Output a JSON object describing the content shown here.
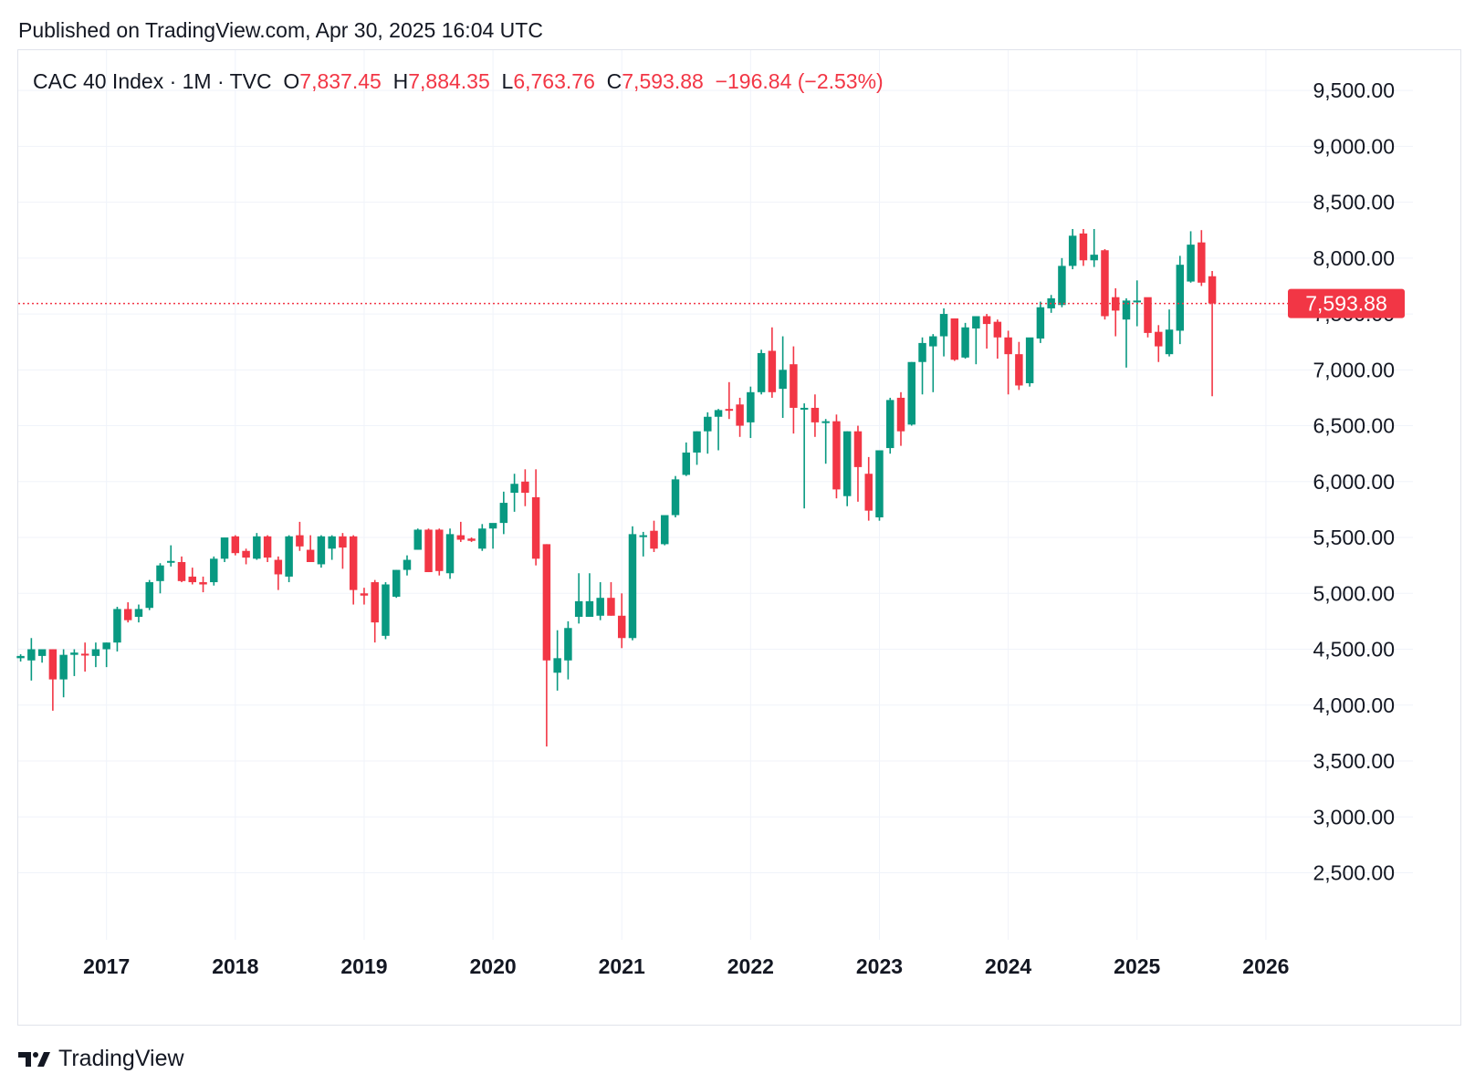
{
  "header": {
    "published_text": "Published on TradingView.com, Apr 30, 2025 16:04 UTC"
  },
  "legend": {
    "symbol": "CAC 40 Index · 1M · TVC",
    "o_label": "O",
    "o_value": "7,837.45",
    "h_label": "H",
    "h_value": "7,884.35",
    "l_label": "L",
    "l_value": "6,763.76",
    "c_label": "C",
    "c_value": "7,593.88",
    "change": "−196.84 (−2.53%)"
  },
  "price_tag": "7,593.88",
  "footer": {
    "brand": "TradingView",
    "logo_icon": "tradingview-logo-icon"
  },
  "colors": {
    "up": "#089981",
    "down": "#f23645",
    "grid": "#f0f3fa",
    "axis_text": "#131722"
  },
  "chart_data": {
    "type": "candlestick",
    "interval": "1M",
    "y_tick_labels": [
      "2,500.00",
      "3,000.00",
      "3,500.00",
      "4,000.00",
      "4,500.00",
      "5,000.00",
      "5,500.00",
      "6,000.00",
      "6,500.00",
      "7,000.00",
      "7,500.00",
      "8,000.00",
      "8,500.00",
      "9,000.00",
      "9,500.00"
    ],
    "y_ticks": [
      2500,
      3000,
      3500,
      4000,
      4500,
      5000,
      5500,
      6000,
      6500,
      7000,
      7500,
      8000,
      8500,
      9000,
      9500
    ],
    "ylim": [
      1900,
      9860
    ],
    "x_tick_labels": [
      "2017",
      "2018",
      "2019",
      "2020",
      "2021",
      "2022",
      "2023",
      "2024",
      "2025",
      "2026"
    ],
    "x_ticks": [
      2017,
      2018,
      2019,
      2020,
      2021,
      2022,
      2023,
      2024,
      2025,
      2026
    ],
    "x_range": [
      2016.315,
      2026.1
    ],
    "last_price": 7593.88,
    "candles": [
      {
        "t": "2016-05",
        "o": 4420,
        "h": 4455,
        "l": 4390,
        "c": 4440
      },
      {
        "t": "2016-06",
        "o": 4400,
        "h": 4600,
        "l": 4220,
        "c": 4500
      },
      {
        "t": "2016-07",
        "o": 4440,
        "h": 4490,
        "l": 4380,
        "c": 4500
      },
      {
        "t": "2016-08",
        "o": 4500,
        "h": 4500,
        "l": 3950,
        "c": 4230
      },
      {
        "t": "2016-09",
        "o": 4230,
        "h": 4500,
        "l": 4070,
        "c": 4450
      },
      {
        "t": "2016-10",
        "o": 4450,
        "h": 4500,
        "l": 4260,
        "c": 4470
      },
      {
        "t": "2016-11",
        "o": 4460,
        "h": 4560,
        "l": 4300,
        "c": 4450
      },
      {
        "t": "2016-12",
        "o": 4440,
        "h": 4560,
        "l": 4340,
        "c": 4500
      },
      {
        "t": "2017-01",
        "o": 4500,
        "h": 4560,
        "l": 4340,
        "c": 4560
      },
      {
        "t": "2017-02",
        "o": 4560,
        "h": 4880,
        "l": 4480,
        "c": 4860
      },
      {
        "t": "2017-03",
        "o": 4860,
        "h": 4920,
        "l": 4740,
        "c": 4760
      },
      {
        "t": "2017-04",
        "o": 4790,
        "h": 4900,
        "l": 4740,
        "c": 4860
      },
      {
        "t": "2017-05",
        "o": 4870,
        "h": 5120,
        "l": 4850,
        "c": 5100
      },
      {
        "t": "2017-06",
        "o": 5110,
        "h": 5270,
        "l": 5000,
        "c": 5250
      },
      {
        "t": "2017-07",
        "o": 5280,
        "h": 5430,
        "l": 5240,
        "c": 5290
      },
      {
        "t": "2017-08",
        "o": 5280,
        "h": 5330,
        "l": 5100,
        "c": 5110
      },
      {
        "t": "2017-09",
        "o": 5150,
        "h": 5230,
        "l": 5080,
        "c": 5100
      },
      {
        "t": "2017-10",
        "o": 5100,
        "h": 5150,
        "l": 5010,
        "c": 5080
      },
      {
        "t": "2017-11",
        "o": 5100,
        "h": 5330,
        "l": 5070,
        "c": 5310
      },
      {
        "t": "2017-12",
        "o": 5310,
        "h": 5500,
        "l": 5280,
        "c": 5500
      },
      {
        "t": "2018-01",
        "o": 5510,
        "h": 5520,
        "l": 5340,
        "c": 5360
      },
      {
        "t": "2018-02",
        "o": 5380,
        "h": 5400,
        "l": 5260,
        "c": 5320
      },
      {
        "t": "2018-03",
        "o": 5310,
        "h": 5540,
        "l": 5300,
        "c": 5510
      },
      {
        "t": "2018-04",
        "o": 5510,
        "h": 5520,
        "l": 5280,
        "c": 5320
      },
      {
        "t": "2018-05",
        "o": 5300,
        "h": 5330,
        "l": 5030,
        "c": 5170
      },
      {
        "t": "2018-06",
        "o": 5150,
        "h": 5520,
        "l": 5100,
        "c": 5510
      },
      {
        "t": "2018-07",
        "o": 5520,
        "h": 5640,
        "l": 5380,
        "c": 5420
      },
      {
        "t": "2018-08",
        "o": 5390,
        "h": 5520,
        "l": 5280,
        "c": 5280
      },
      {
        "t": "2018-09",
        "o": 5260,
        "h": 5520,
        "l": 5230,
        "c": 5510
      },
      {
        "t": "2018-10",
        "o": 5400,
        "h": 5520,
        "l": 5300,
        "c": 5510
      },
      {
        "t": "2018-11",
        "o": 5510,
        "h": 5540,
        "l": 5220,
        "c": 5410
      },
      {
        "t": "2018-12",
        "o": 5510,
        "h": 5520,
        "l": 4900,
        "c": 5030
      },
      {
        "t": "2019-01",
        "o": 5000,
        "h": 5050,
        "l": 4900,
        "c": 4980
      },
      {
        "t": "2019-02",
        "o": 5100,
        "h": 5120,
        "l": 4560,
        "c": 4740
      },
      {
        "t": "2019-03",
        "o": 4620,
        "h": 5100,
        "l": 4590,
        "c": 5080
      },
      {
        "t": "2019-04",
        "o": 4970,
        "h": 5210,
        "l": 4960,
        "c": 5210
      },
      {
        "t": "2019-05",
        "o": 5210,
        "h": 5340,
        "l": 5160,
        "c": 5300
      },
      {
        "t": "2019-06",
        "o": 5390,
        "h": 5580,
        "l": 5390,
        "c": 5570
      },
      {
        "t": "2019-07",
        "o": 5570,
        "h": 5580,
        "l": 5190,
        "c": 5190
      },
      {
        "t": "2019-08",
        "o": 5570,
        "h": 5580,
        "l": 5160,
        "c": 5200
      },
      {
        "t": "2019-09",
        "o": 5180,
        "h": 5580,
        "l": 5130,
        "c": 5530
      },
      {
        "t": "2019-10",
        "o": 5520,
        "h": 5640,
        "l": 5460,
        "c": 5480
      },
      {
        "t": "2019-11",
        "o": 5490,
        "h": 5500,
        "l": 5460,
        "c": 5470
      },
      {
        "t": "2019-12",
        "o": 5400,
        "h": 5620,
        "l": 5380,
        "c": 5580
      },
      {
        "t": "2020-01",
        "o": 5580,
        "h": 5620,
        "l": 5400,
        "c": 5630
      },
      {
        "t": "2020-02",
        "o": 5630,
        "h": 5910,
        "l": 5530,
        "c": 5810
      },
      {
        "t": "2020-03",
        "o": 5900,
        "h": 6070,
        "l": 5730,
        "c": 5980
      },
      {
        "t": "2020-04",
        "o": 6000,
        "h": 6110,
        "l": 5780,
        "c": 5900
      },
      {
        "t": "2020-05",
        "o": 5860,
        "h": 6110,
        "l": 5250,
        "c": 5310
      },
      {
        "t": "2020-06",
        "o": 5440,
        "h": 5440,
        "l": 3630,
        "c": 4400
      },
      {
        "t": "2020-07",
        "o": 4290,
        "h": 4670,
        "l": 4130,
        "c": 4420
      },
      {
        "t": "2020-08",
        "o": 4400,
        "h": 4750,
        "l": 4230,
        "c": 4690
      },
      {
        "t": "2020-09",
        "o": 4790,
        "h": 5180,
        "l": 4730,
        "c": 4930
      },
      {
        "t": "2020-10",
        "o": 4790,
        "h": 5180,
        "l": 4790,
        "c": 4930
      },
      {
        "t": "2020-11",
        "o": 4800,
        "h": 5100,
        "l": 4760,
        "c": 4960
      },
      {
        "t": "2020-12",
        "o": 4960,
        "h": 5100,
        "l": 4800,
        "c": 4800
      },
      {
        "t": "2021-01",
        "o": 4800,
        "h": 5000,
        "l": 4510,
        "c": 4600
      },
      {
        "t": "2021-02",
        "o": 4600,
        "h": 5600,
        "l": 4580,
        "c": 5530
      },
      {
        "t": "2021-03",
        "o": 5520,
        "h": 5550,
        "l": 5330,
        "c": 5520
      },
      {
        "t": "2021-04",
        "o": 5560,
        "h": 5650,
        "l": 5370,
        "c": 5400
      },
      {
        "t": "2021-05",
        "o": 5440,
        "h": 5650,
        "l": 5430,
        "c": 5700
      },
      {
        "t": "2021-06",
        "o": 5700,
        "h": 6050,
        "l": 5680,
        "c": 6020
      },
      {
        "t": "2021-07",
        "o": 6060,
        "h": 6350,
        "l": 6050,
        "c": 6260
      },
      {
        "t": "2021-08",
        "o": 6260,
        "h": 6450,
        "l": 6150,
        "c": 6450
      },
      {
        "t": "2021-09",
        "o": 6450,
        "h": 6620,
        "l": 6250,
        "c": 6580
      },
      {
        "t": "2021-10",
        "o": 6580,
        "h": 6650,
        "l": 6280,
        "c": 6640
      },
      {
        "t": "2021-11",
        "o": 6650,
        "h": 6890,
        "l": 6560,
        "c": 6640
      },
      {
        "t": "2021-12",
        "o": 6690,
        "h": 6750,
        "l": 6400,
        "c": 6500
      },
      {
        "t": "2022-01",
        "o": 6530,
        "h": 6850,
        "l": 6390,
        "c": 6800
      },
      {
        "t": "2022-02",
        "o": 6800,
        "h": 7180,
        "l": 6780,
        "c": 7150
      },
      {
        "t": "2022-03",
        "o": 7170,
        "h": 7380,
        "l": 6750,
        "c": 6800
      },
      {
        "t": "2022-04",
        "o": 6830,
        "h": 7300,
        "l": 6570,
        "c": 7000
      },
      {
        "t": "2022-05",
        "o": 7050,
        "h": 7210,
        "l": 6430,
        "c": 6660
      },
      {
        "t": "2022-06",
        "o": 6660,
        "h": 6700,
        "l": 5760,
        "c": 6660
      },
      {
        "t": "2022-07",
        "o": 6660,
        "h": 6780,
        "l": 6400,
        "c": 6530
      },
      {
        "t": "2022-08",
        "o": 6530,
        "h": 6560,
        "l": 6160,
        "c": 6540
      },
      {
        "t": "2022-09",
        "o": 6540,
        "h": 6600,
        "l": 5850,
        "c": 5930
      },
      {
        "t": "2022-10",
        "o": 5870,
        "h": 6450,
        "l": 5780,
        "c": 6450
      },
      {
        "t": "2022-11",
        "o": 6450,
        "h": 6500,
        "l": 5820,
        "c": 6130
      },
      {
        "t": "2022-12",
        "o": 6070,
        "h": 6220,
        "l": 5650,
        "c": 5740
      },
      {
        "t": "2023-01",
        "o": 5680,
        "h": 6280,
        "l": 5650,
        "c": 6280
      },
      {
        "t": "2023-02",
        "o": 6300,
        "h": 6750,
        "l": 6250,
        "c": 6730
      },
      {
        "t": "2023-03",
        "o": 6750,
        "h": 6800,
        "l": 6320,
        "c": 6450
      },
      {
        "t": "2023-04",
        "o": 6510,
        "h": 7070,
        "l": 6500,
        "c": 7070
      },
      {
        "t": "2023-05",
        "o": 7070,
        "h": 7290,
        "l": 6780,
        "c": 7240
      },
      {
        "t": "2023-06",
        "o": 7210,
        "h": 7320,
        "l": 6800,
        "c": 7300
      },
      {
        "t": "2023-07",
        "o": 7300,
        "h": 7550,
        "l": 7120,
        "c": 7500
      },
      {
        "t": "2023-08",
        "o": 7460,
        "h": 7460,
        "l": 7080,
        "c": 7090
      },
      {
        "t": "2023-09",
        "o": 7110,
        "h": 7420,
        "l": 7100,
        "c": 7380
      },
      {
        "t": "2023-10",
        "o": 7370,
        "h": 7450,
        "l": 7050,
        "c": 7480
      },
      {
        "t": "2023-11",
        "o": 7480,
        "h": 7500,
        "l": 7190,
        "c": 7410
      },
      {
        "t": "2023-12",
        "o": 7430,
        "h": 7450,
        "l": 7100,
        "c": 7290
      },
      {
        "t": "2024-01",
        "o": 7290,
        "h": 7350,
        "l": 6780,
        "c": 7140
      },
      {
        "t": "2024-02",
        "o": 7140,
        "h": 7250,
        "l": 6820,
        "c": 6860
      },
      {
        "t": "2024-03",
        "o": 6880,
        "h": 7260,
        "l": 6850,
        "c": 7290
      },
      {
        "t": "2024-04",
        "o": 7280,
        "h": 7610,
        "l": 7240,
        "c": 7560
      },
      {
        "t": "2024-05",
        "o": 7550,
        "h": 7670,
        "l": 7510,
        "c": 7640
      },
      {
        "t": "2024-06",
        "o": 7580,
        "h": 8000,
        "l": 7560,
        "c": 7930
      },
      {
        "t": "2024-07",
        "o": 7930,
        "h": 8260,
        "l": 7900,
        "c": 8200
      },
      {
        "t": "2024-08",
        "o": 8220,
        "h": 8260,
        "l": 7930,
        "c": 7980
      },
      {
        "t": "2024-09",
        "o": 7980,
        "h": 8260,
        "l": 7920,
        "c": 8030
      },
      {
        "t": "2024-10",
        "o": 8070,
        "h": 8080,
        "l": 7450,
        "c": 7480
      },
      {
        "t": "2024-11",
        "o": 7650,
        "h": 7730,
        "l": 7300,
        "c": 7530
      },
      {
        "t": "2024-12",
        "o": 7450,
        "h": 7640,
        "l": 7020,
        "c": 7620
      },
      {
        "t": "2025-01",
        "o": 7610,
        "h": 7800,
        "l": 7390,
        "c": 7620
      },
      {
        "t": "2025-02",
        "o": 7650,
        "h": 7640,
        "l": 7290,
        "c": 7330
      },
      {
        "t": "2025-03",
        "o": 7340,
        "h": 7400,
        "l": 7070,
        "c": 7210
      },
      {
        "t": "2025-04",
        "o": 7140,
        "h": 7540,
        "l": 7120,
        "c": 7360
      },
      {
        "t": "2025-05",
        "o": 7350,
        "h": 8020,
        "l": 7230,
        "c": 7940
      },
      {
        "t": "2025-06",
        "o": 7790,
        "h": 8240,
        "l": 7780,
        "c": 8120
      },
      {
        "t": "2025-07",
        "o": 8140,
        "h": 8250,
        "l": 7750,
        "c": 7780
      },
      {
        "t": "2025-08",
        "o": 7837.45,
        "h": 7884.35,
        "l": 6763.76,
        "c": 7593.88
      }
    ]
  }
}
